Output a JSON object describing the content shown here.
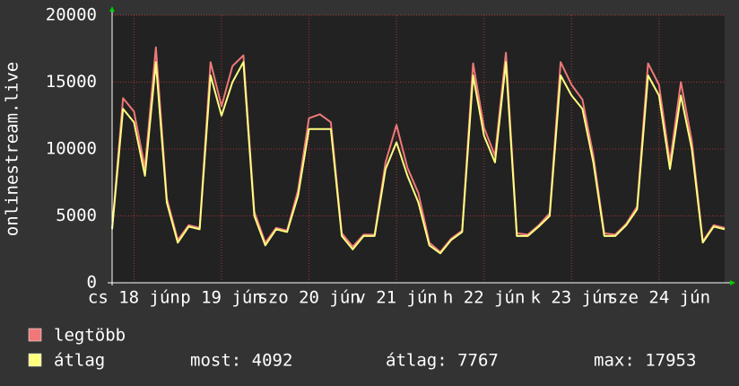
{
  "chart_data": {
    "type": "line",
    "ylabel": "onlinestream.live",
    "x": [
      0,
      3,
      6,
      9,
      12,
      15,
      18,
      21,
      24,
      27,
      30,
      33,
      36,
      39,
      42,
      45,
      48,
      51,
      54,
      57,
      60,
      63,
      66,
      69,
      72,
      75,
      78,
      81,
      84,
      87,
      90,
      93,
      96,
      99,
      102,
      105,
      108,
      111,
      114,
      117,
      120,
      123,
      126,
      129,
      132,
      135,
      138,
      141,
      144,
      147,
      150,
      153,
      156,
      159,
      162,
      165,
      168
    ],
    "series": [
      {
        "name": "legtöbb",
        "color": "#f07878",
        "values": [
          4100,
          13800,
          12800,
          8600,
          17600,
          6300,
          3200,
          4300,
          4100,
          16500,
          13200,
          16200,
          17000,
          5300,
          3000,
          4100,
          3900,
          6900,
          12300,
          12600,
          12000,
          3700,
          2700,
          3600,
          3600,
          9000,
          11800,
          8600,
          6700,
          3000,
          2300,
          3300,
          3900,
          16400,
          11600,
          9500,
          17200,
          3700,
          3600,
          4300,
          5200,
          16500,
          14800,
          13700,
          9500,
          3700,
          3600,
          4400,
          5700,
          16400,
          14800,
          9000,
          15000,
          10600,
          3100,
          4300,
          4100
        ]
      },
      {
        "name": "átlag",
        "color": "#ffff80",
        "values": [
          4000,
          13000,
          12000,
          8000,
          16500,
          6000,
          3000,
          4200,
          4000,
          15500,
          12500,
          15000,
          16500,
          5000,
          2800,
          4000,
          3800,
          6500,
          11500,
          11500,
          11500,
          3500,
          2500,
          3500,
          3500,
          8500,
          10500,
          8000,
          6000,
          2800,
          2200,
          3200,
          3800,
          15500,
          11000,
          9000,
          16500,
          3500,
          3500,
          4200,
          5000,
          15500,
          14000,
          13000,
          9000,
          3500,
          3500,
          4300,
          5500,
          15500,
          14000,
          8500,
          14000,
          10000,
          3000,
          4200,
          4000
        ]
      }
    ],
    "xlim": [
      0,
      168
    ],
    "xticks": [
      {
        "value": 6,
        "label": "cs 18 jún"
      },
      {
        "value": 30,
        "label": "p 19 jún"
      },
      {
        "value": 54,
        "label": "szo 20 jún"
      },
      {
        "value": 78,
        "label": "v 21 jún"
      },
      {
        "value": 102,
        "label": "h 22 jún"
      },
      {
        "value": 126,
        "label": "k 23 jún"
      },
      {
        "value": 150,
        "label": "sze 24 jún"
      }
    ],
    "ylim": [
      0,
      20000
    ],
    "yticks": [
      0,
      5000,
      10000,
      15000,
      20000
    ],
    "grid": true,
    "summary": [
      "most: 4092",
      "átlag: 7767",
      "max: 17953"
    ]
  }
}
